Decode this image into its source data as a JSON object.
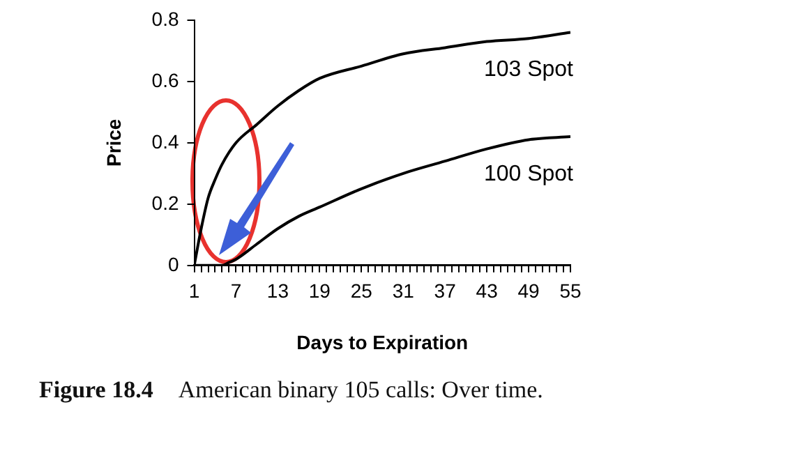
{
  "chart_data": {
    "type": "line",
    "xlabel": "Days to Expiration",
    "ylabel": "Price",
    "annotations": [
      "Figure 18.4",
      "American binary 105 calls: Over time."
    ],
    "xlim": [
      1,
      55
    ],
    "xticks": [
      1,
      {
        "value": 2,
        "label": null
      },
      {
        "value": 3,
        "label": null
      },
      {
        "value": 4,
        "label": null
      },
      {
        "value": 5,
        "label": null
      },
      {
        "value": 6,
        "label": null
      },
      7,
      {
        "value": 8,
        "label": null
      },
      {
        "value": 9,
        "label": null
      },
      {
        "value": 10,
        "label": null
      },
      {
        "value": 11,
        "label": null
      },
      {
        "value": 12,
        "label": null
      },
      13,
      {
        "value": 14,
        "label": null
      },
      {
        "value": 15,
        "label": null
      },
      {
        "value": 16,
        "label": null
      },
      {
        "value": 17,
        "label": null
      },
      {
        "value": 18,
        "label": null
      },
      19,
      {
        "value": 20,
        "label": null
      },
      {
        "value": 21,
        "label": null
      },
      {
        "value": 22,
        "label": null
      },
      {
        "value": 23,
        "label": null
      },
      {
        "value": 24,
        "label": null
      },
      25,
      {
        "value": 26,
        "label": null
      },
      {
        "value": 27,
        "label": null
      },
      {
        "value": 28,
        "label": null
      },
      {
        "value": 29,
        "label": null
      },
      {
        "value": 30,
        "label": null
      },
      31,
      {
        "value": 32,
        "label": null
      },
      {
        "value": 33,
        "label": null
      },
      {
        "value": 34,
        "label": null
      },
      {
        "value": 35,
        "label": null
      },
      {
        "value": 36,
        "label": null
      },
      37,
      {
        "value": 38,
        "label": null
      },
      {
        "value": 39,
        "label": null
      },
      {
        "value": 40,
        "label": null
      },
      {
        "value": 41,
        "label": null
      },
      {
        "value": 42,
        "label": null
      },
      43,
      {
        "value": 44,
        "label": null
      },
      {
        "value": 45,
        "label": null
      },
      {
        "value": 46,
        "label": null
      },
      {
        "value": 47,
        "label": null
      },
      {
        "value": 48,
        "label": null
      },
      49,
      {
        "value": 50,
        "label": null
      },
      {
        "value": 51,
        "label": null
      },
      {
        "value": 52,
        "label": null
      },
      {
        "value": 53,
        "label": null
      },
      {
        "value": 54,
        "label": null
      },
      55
    ],
    "ylim": [
      0,
      0.8
    ],
    "yticks": [
      0,
      0.2,
      0.4,
      0.6,
      0.8
    ],
    "grid": false,
    "legend": false,
    "marker": "none",
    "line_style": "solid",
    "series": [
      {
        "name": "103 Spot",
        "color": "#000000",
        "x": [
          1,
          2,
          3,
          4,
          5,
          7,
          10,
          13,
          16,
          19,
          25,
          31,
          37,
          43,
          49,
          55
        ],
        "values": [
          0,
          0.12,
          0.22,
          0.28,
          0.33,
          0.4,
          0.46,
          0.52,
          0.57,
          0.61,
          0.65,
          0.69,
          0.71,
          0.73,
          0.74,
          0.76
        ]
      },
      {
        "name": "100 Spot",
        "color": "#000000",
        "x": [
          1,
          3,
          5,
          6,
          7,
          10,
          13,
          16,
          19,
          25,
          31,
          37,
          43,
          49,
          55
        ],
        "values": [
          0,
          0,
          0,
          0.01,
          0.02,
          0.07,
          0.12,
          0.16,
          0.19,
          0.25,
          0.3,
          0.34,
          0.38,
          0.41,
          0.42
        ]
      }
    ]
  }
}
